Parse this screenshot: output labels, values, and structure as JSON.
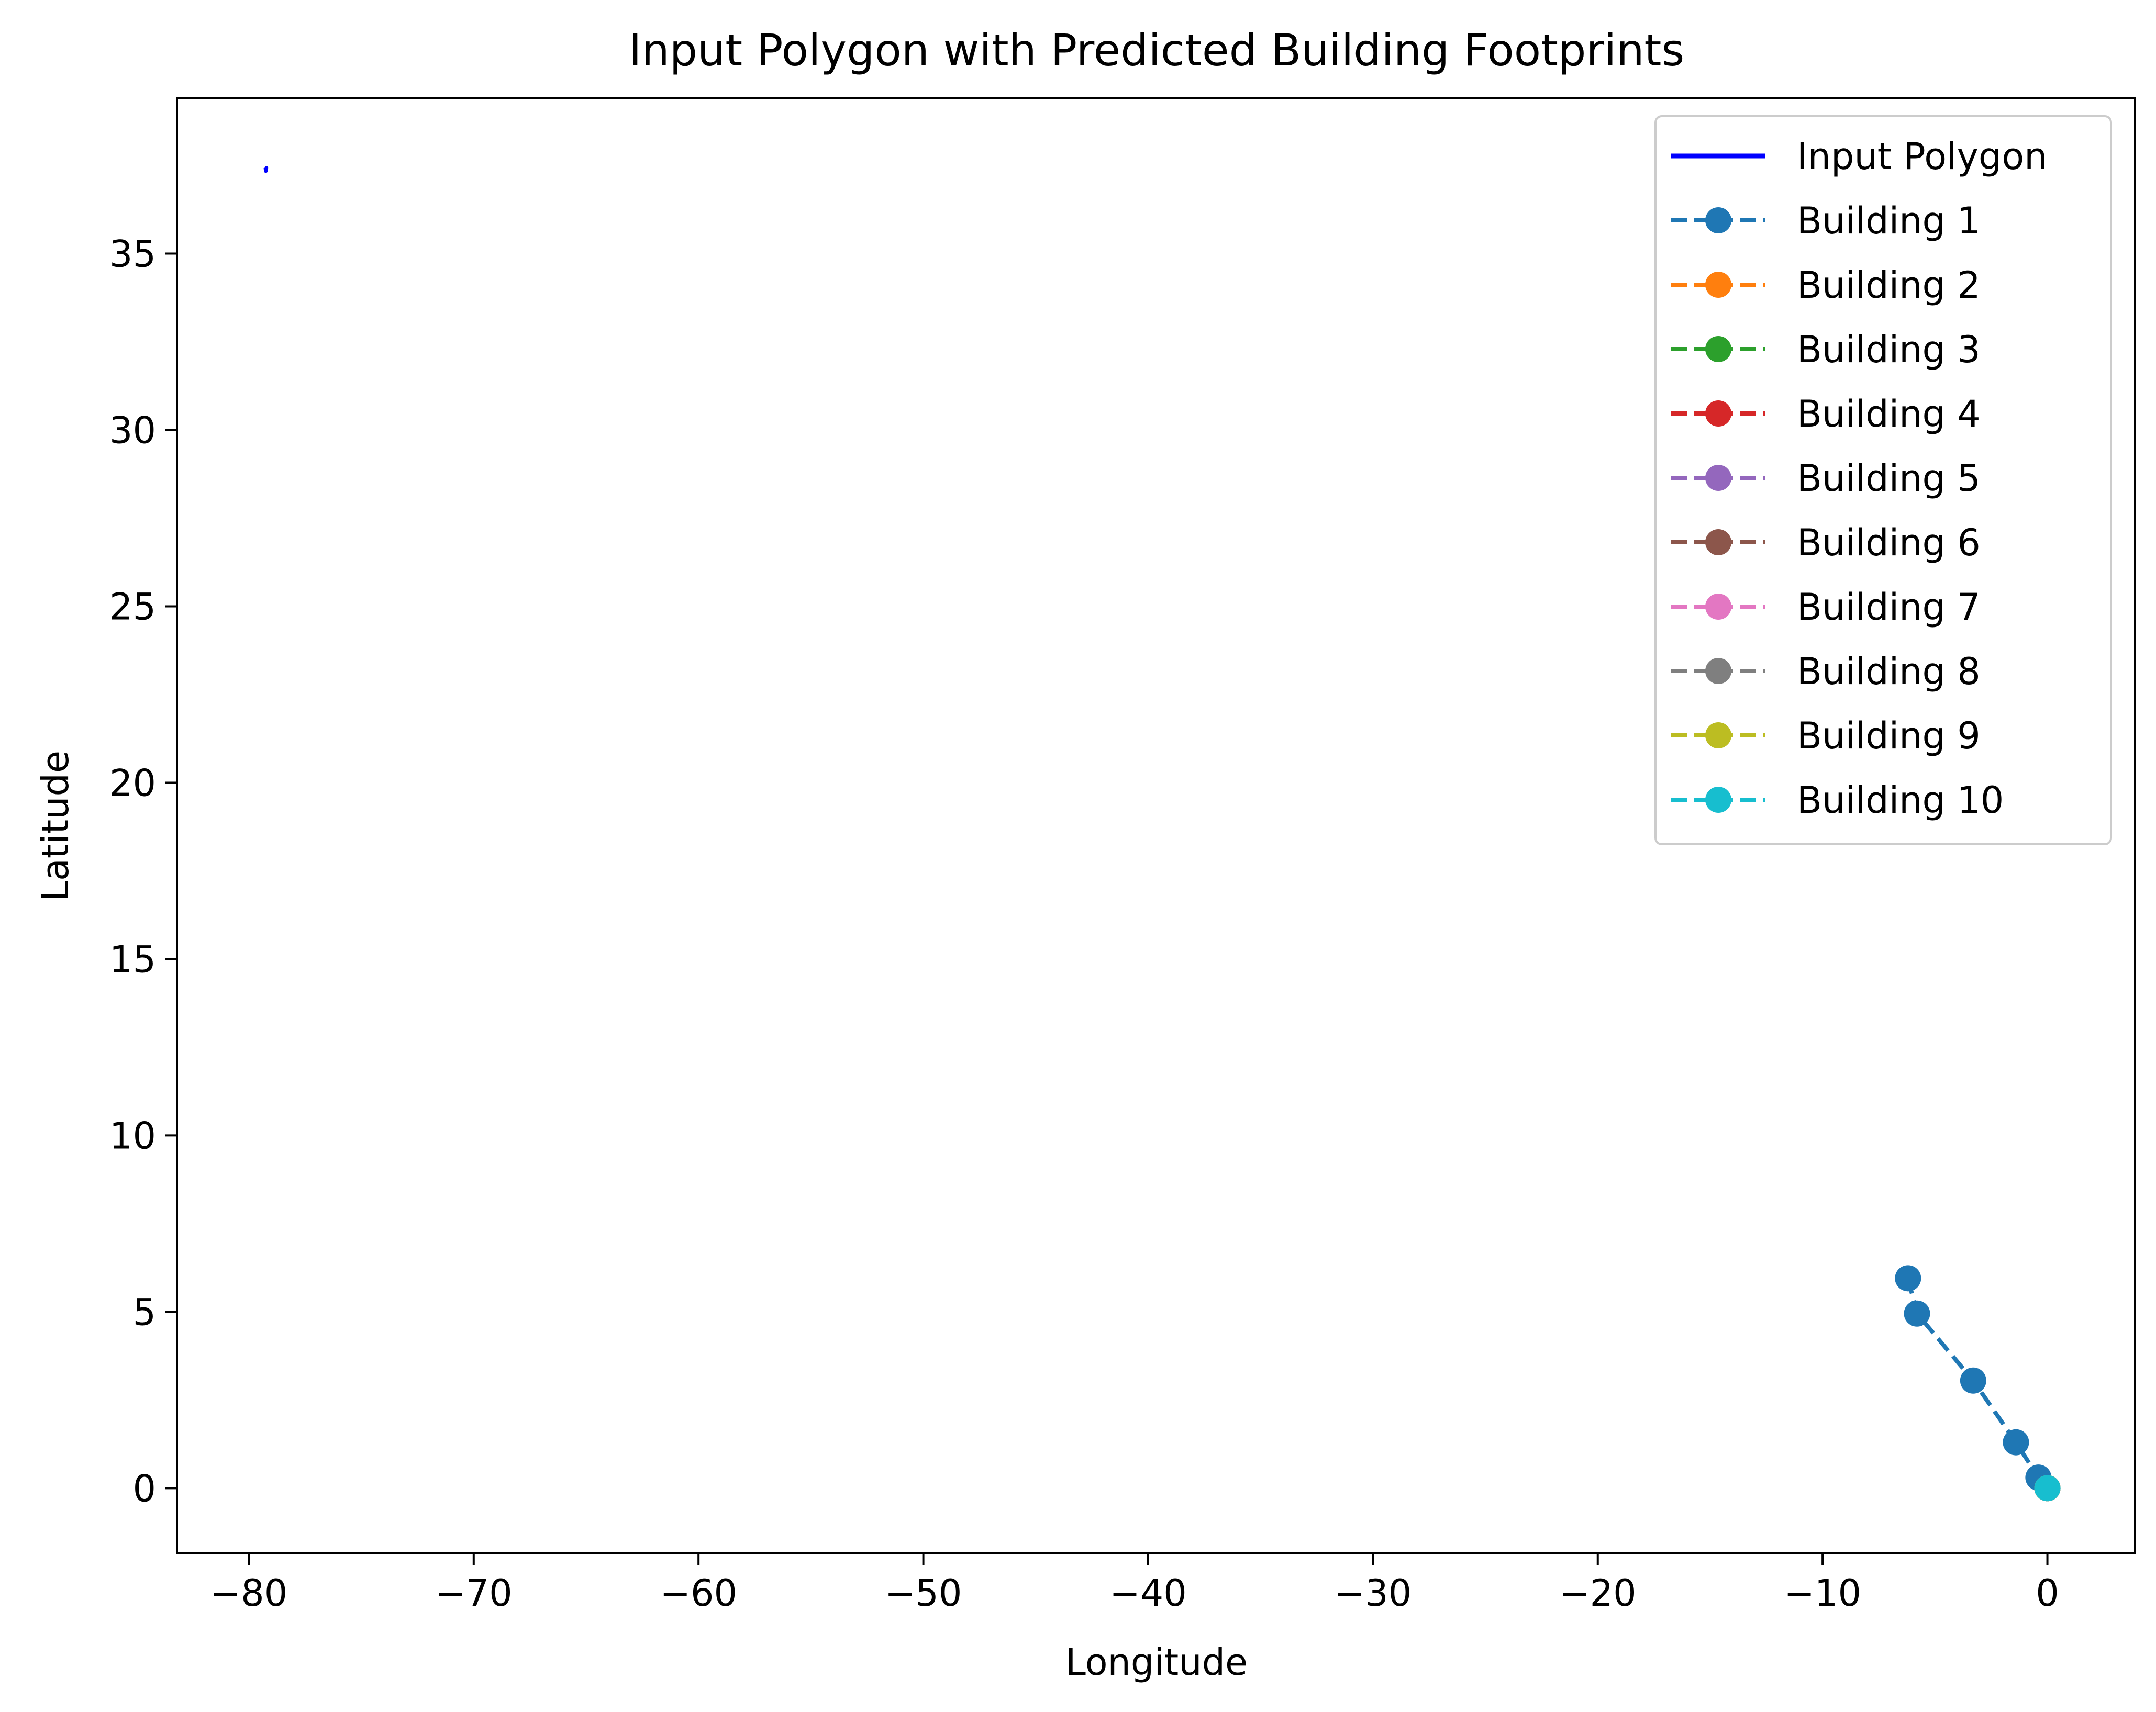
{
  "chart_data": {
    "type": "line",
    "title": "Input Polygon with Predicted Building Footprints",
    "xlabel": "Longitude",
    "ylabel": "Latitude",
    "xlim": [
      -83.2,
      3.9
    ],
    "ylim": [
      -1.85,
      39.4
    ],
    "xticks": [
      -80,
      -70,
      -60,
      -50,
      -40,
      -30,
      -20,
      -10,
      0
    ],
    "xtick_labels": [
      "−80",
      "−70",
      "−60",
      "−50",
      "−40",
      "−30",
      "−20",
      "−10",
      "0"
    ],
    "yticks": [
      0,
      5,
      10,
      15,
      20,
      25,
      30,
      35
    ],
    "ytick_labels": [
      "0",
      "5",
      "10",
      "15",
      "20",
      "25",
      "30",
      "35"
    ],
    "grid": false,
    "legend_position": "top-right",
    "polygon": {
      "name": "Input Polygon",
      "color": "#0000ff",
      "x": [
        -79.265,
        -79.225,
        -79.245,
        -79.265
      ],
      "y": [
        37.43,
        37.43,
        37.34,
        37.43
      ]
    },
    "series": [
      {
        "name": "Building 1",
        "color": "#1f77b4",
        "x": [
          -6.2,
          -5.8,
          -3.3,
          -1.4,
          -0.4,
          0.0
        ],
        "y": [
          5.95,
          4.95,
          3.05,
          1.3,
          0.3,
          0.0
        ]
      },
      {
        "name": "Building 2",
        "color": "#ff7f0e",
        "x": [
          0.0
        ],
        "y": [
          0.0
        ]
      },
      {
        "name": "Building 3",
        "color": "#2ca02c",
        "x": [
          0.0
        ],
        "y": [
          0.0
        ]
      },
      {
        "name": "Building 4",
        "color": "#d62728",
        "x": [
          0.0
        ],
        "y": [
          0.0
        ]
      },
      {
        "name": "Building 5",
        "color": "#9467bd",
        "x": [
          0.0
        ],
        "y": [
          0.0
        ]
      },
      {
        "name": "Building 6",
        "color": "#8c564b",
        "x": [
          0.0
        ],
        "y": [
          0.0
        ]
      },
      {
        "name": "Building 7",
        "color": "#e377c2",
        "x": [
          0.0
        ],
        "y": [
          0.0
        ]
      },
      {
        "name": "Building 8",
        "color": "#7f7f7f",
        "x": [
          0.0
        ],
        "y": [
          0.0
        ]
      },
      {
        "name": "Building 9",
        "color": "#bcbd22",
        "x": [
          0.0
        ],
        "y": [
          0.0
        ]
      },
      {
        "name": "Building 10",
        "color": "#17becf",
        "x": [
          0.0
        ],
        "y": [
          0.0
        ]
      }
    ]
  }
}
